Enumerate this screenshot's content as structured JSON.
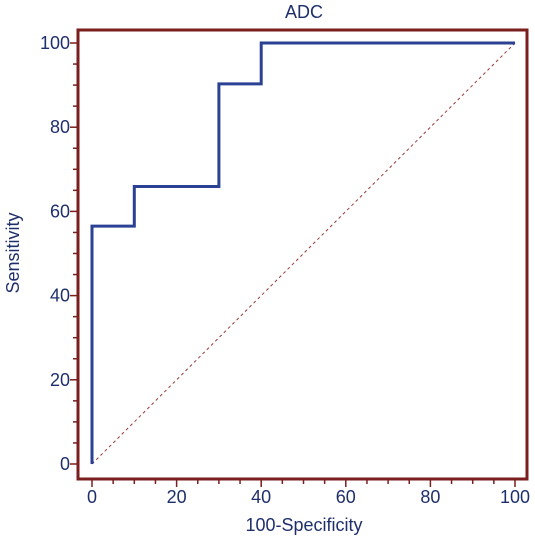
{
  "chart_data": {
    "type": "line",
    "title": "ADC",
    "xlabel": "100-Specificity",
    "ylabel": "Sensitivity",
    "xlim": [
      0,
      100
    ],
    "ylim": [
      0,
      100
    ],
    "xticks": [
      0,
      20,
      40,
      60,
      80,
      100
    ],
    "yticks": [
      0,
      20,
      40,
      60,
      80,
      100
    ],
    "grid": false,
    "series": [
      {
        "values": [
          [
            0,
            0
          ],
          [
            0,
            56.5
          ],
          [
            10,
            56.5
          ],
          [
            10,
            65.9
          ],
          [
            30,
            65.9
          ],
          [
            30,
            90.3
          ],
          [
            40,
            90.3
          ],
          [
            40,
            100
          ],
          [
            100,
            100
          ]
        ]
      }
    ],
    "reference_line": [
      [
        0,
        0
      ],
      [
        100,
        100
      ]
    ],
    "colors": {
      "frame": "#7a1e1e",
      "curve": "#2b4193",
      "reference": "#9a3a3a",
      "text": "#1f2f6b"
    }
  }
}
